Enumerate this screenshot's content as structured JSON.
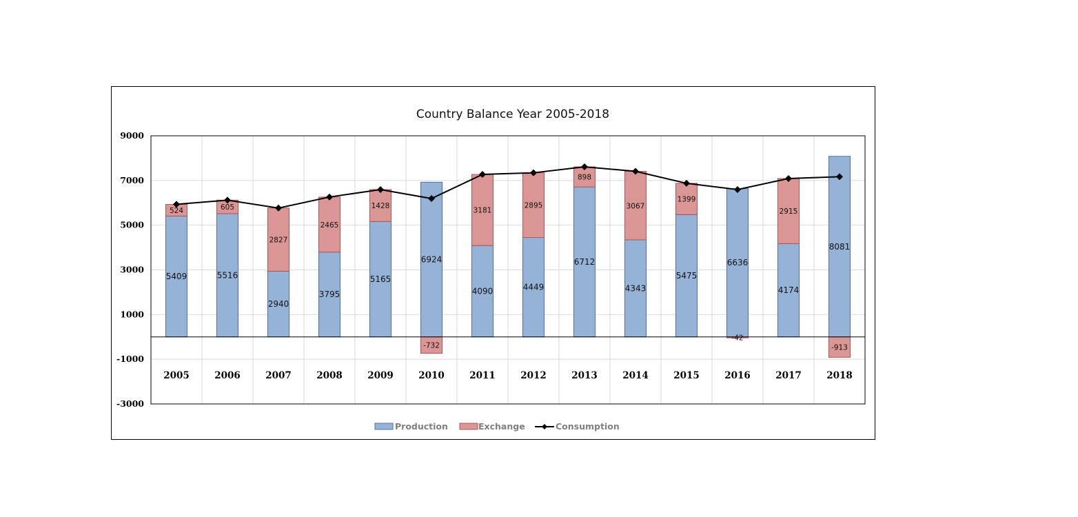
{
  "chart_data": {
    "type": "bar",
    "subtype": "stacked-bar-with-line",
    "title": "Country Balance Year 2005-2018",
    "xlabel": "",
    "ylabel": "",
    "categories": [
      "2005",
      "2006",
      "2007",
      "2008",
      "2009",
      "2010",
      "2011",
      "2012",
      "2013",
      "2014",
      "2015",
      "2016",
      "2017",
      "2018"
    ],
    "ylim": [
      -3000,
      9000
    ],
    "yticks": [
      -3000,
      -1000,
      1000,
      3000,
      5000,
      7000,
      9000
    ],
    "ytick_labels": [
      "-3000",
      "-1000",
      "1000",
      "3000",
      "5000",
      "7000",
      "9000"
    ],
    "grid": true,
    "legend_position": "bottom",
    "series": [
      {
        "name": "Production",
        "type": "bar",
        "color": "#95B3D7",
        "border": "#4F6FA0",
        "values": [
          5409,
          5516,
          2940,
          3795,
          5165,
          6924,
          4090,
          4449,
          6712,
          4343,
          5475,
          6636,
          4174,
          8081
        ]
      },
      {
        "name": "Exchange",
        "type": "bar",
        "color": "#DA9694",
        "border": "#B05454",
        "values": [
          524,
          605,
          2827,
          2465,
          1428,
          -732,
          3181,
          2895,
          898,
          3067,
          1399,
          -42,
          2915,
          -913
        ]
      },
      {
        "name": "Consumption",
        "type": "line",
        "color": "#000000",
        "marker": "diamond",
        "values": [
          5933,
          6121,
          5767,
          6260,
          6593,
          6192,
          7271,
          7344,
          7610,
          7410,
          6874,
          6594,
          7089,
          7168
        ]
      }
    ]
  }
}
